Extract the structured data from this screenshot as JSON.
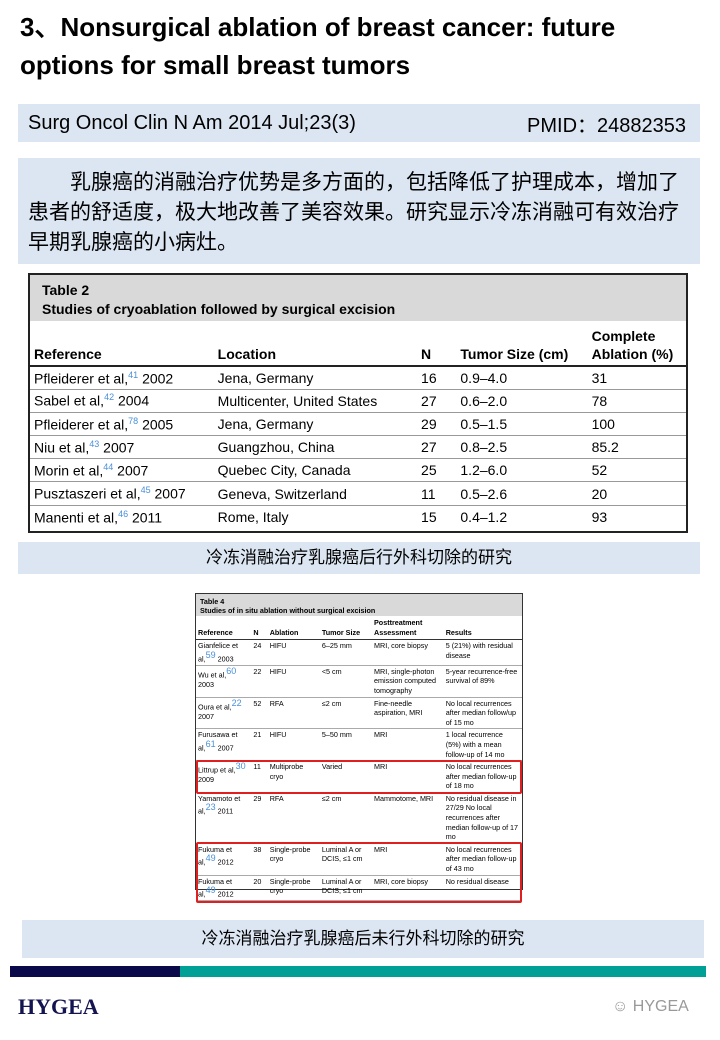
{
  "title": "3、Nonsurgical ablation of breast cancer: future options for small breast tumors",
  "citation": {
    "journal": "Surg Oncol Clin N Am 2014 Jul;23(3)",
    "pmid": "PMID：24882353"
  },
  "summary": "乳腺癌的消融治疗优势是多方面的，包括降低了护理成本，增加了患者的舒适度，极大地改善了美容效果。研究显示冷冻消融可有效治疗早期乳腺癌的小病灶。",
  "table2": {
    "label": "Table 2",
    "title": "Studies of cryoablation followed by surgical excision",
    "headers": [
      "Reference",
      "Location",
      "N",
      "Tumor Size (cm)",
      "Complete Ablation (%)"
    ],
    "rows": [
      {
        "ref": "Pfleiderer et al,",
        "sup": "41",
        "year": " 2002",
        "loc": "Jena, Germany",
        "n": "16",
        "size": "0.9–4.0",
        "ca": "31"
      },
      {
        "ref": "Sabel et al,",
        "sup": "42",
        "year": " 2004",
        "loc": "Multicenter, United States",
        "n": "27",
        "size": "0.6–2.0",
        "ca": "78"
      },
      {
        "ref": "Pfleiderer et al,",
        "sup": "78",
        "year": " 2005",
        "loc": "Jena, Germany",
        "n": "29",
        "size": "0.5–1.5",
        "ca": "100"
      },
      {
        "ref": "Niu et al,",
        "sup": "43",
        "year": " 2007",
        "loc": "Guangzhou, China",
        "n": "27",
        "size": "0.8–2.5",
        "ca": "85.2"
      },
      {
        "ref": "Morin et al,",
        "sup": "44",
        "year": " 2007",
        "loc": "Quebec City, Canada",
        "n": "25",
        "size": "1.2–6.0",
        "ca": "52"
      },
      {
        "ref": "Pusztaszeri et al,",
        "sup": "45",
        "year": " 2007",
        "loc": "Geneva, Switzerland",
        "n": "11",
        "size": "0.5–2.6",
        "ca": "20"
      },
      {
        "ref": "Manenti et al,",
        "sup": "46",
        "year": " 2011",
        "loc": "Rome, Italy",
        "n": "15",
        "size": "0.4–1.2",
        "ca": "93"
      }
    ]
  },
  "caption2": "冷冻消融治疗乳腺癌后行外科切除的研究",
  "table4": {
    "label": "Table 4",
    "title": "Studies of in situ ablation without surgical excision",
    "headers": [
      "Reference",
      "N",
      "Ablation",
      "Tumor Size",
      "Posttreatment Assessment",
      "Results"
    ],
    "rows": [
      {
        "ref": "Gianfelice et al,",
        "sup": "59",
        "year": " 2003",
        "n": "24",
        "abl": "HIFU",
        "size": "6–25 mm",
        "assess": "MRI, core biopsy",
        "res": "5 (21%) with residual disease",
        "hl": false
      },
      {
        "ref": "Wu et al,",
        "sup": "60",
        "year": " 2003",
        "n": "22",
        "abl": "HIFU",
        "size": "<5 cm",
        "assess": "MRI, single-photon emission computed tomography",
        "res": "5-year recurrence-free survival of 89%",
        "hl": false
      },
      {
        "ref": "Oura et al,",
        "sup": "22",
        "year": " 2007",
        "n": "52",
        "abl": "RFA",
        "size": "≤2 cm",
        "assess": "Fine-needle aspiration, MRI",
        "res": "No local recurrences after median follow/up of 15 mo",
        "hl": false
      },
      {
        "ref": "Furusawa et al,",
        "sup": "61",
        "year": " 2007",
        "n": "21",
        "abl": "HIFU",
        "size": "5–50 mm",
        "assess": "MRI",
        "res": "1 local recurrence (5%) with a mean follow-up of 14 mo",
        "hl": false
      },
      {
        "ref": "Littrup et al,",
        "sup": "30",
        "year": " 2009",
        "n": "11",
        "abl": "Multiprobe cryo",
        "size": "Varied",
        "assess": "MRI",
        "res": "No local recurrences after median follow-up of 18 mo",
        "hl": true
      },
      {
        "ref": "Yamamoto et al,",
        "sup": "23",
        "year": " 2011",
        "n": "29",
        "abl": "RFA",
        "size": "≤2 cm",
        "assess": "Mammotome, MRI",
        "res": "No residual disease in 27/29 No local recurrences after median follow-up of 17 mo",
        "hl": false
      },
      {
        "ref": "Fukuma et al,",
        "sup": "49",
        "year": " 2012",
        "n": "38",
        "abl": "Single-probe cryo",
        "size": "Luminal A or DCIS, ≤1 cm",
        "assess": "MRI",
        "res": "No local recurrences after median follow-up of 43 mo",
        "hl": true
      },
      {
        "ref": "Fukuma et al,",
        "sup": "49",
        "year": " 2012",
        "n": "20",
        "abl": "Single-probe cryo",
        "size": "Luminal A or DCIS, ≤1 cm",
        "assess": "MRI, core biopsy",
        "res": "No residual disease",
        "hl": true
      }
    ]
  },
  "caption4": "冷冻消融治疗乳腺癌后未行外科切除的研究",
  "footer": {
    "logo": "HYGEA",
    "watermark": "HYGEA",
    "colors": {
      "navy": "#0a0a4a",
      "teal": "#00a096",
      "highlight": "#e02020"
    }
  }
}
